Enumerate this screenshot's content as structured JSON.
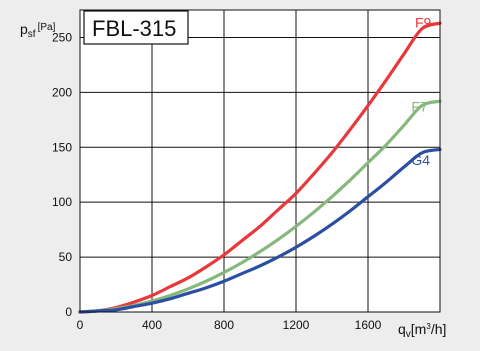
{
  "chart_data": {
    "type": "line",
    "title": "FBL-315",
    "ylabel": {
      "symbol": "p",
      "subscript": "sf",
      "unit": "[Pa]"
    },
    "xlabel": {
      "symbol": "q",
      "subscript": "v",
      "unit_prefix": "[m",
      "unit_sup": "3",
      "unit_suffix": "/h]"
    },
    "xlim": [
      0,
      2000
    ],
    "ylim": [
      0,
      275
    ],
    "xticks": [
      0,
      400,
      800,
      1200,
      1600
    ],
    "yticks": [
      0,
      50,
      100,
      150,
      200,
      250
    ],
    "grid": true,
    "series": [
      {
        "name": "F9",
        "color": "#e8383d",
        "points": [
          [
            0,
            0
          ],
          [
            100,
            1
          ],
          [
            200,
            4
          ],
          [
            300,
            9
          ],
          [
            400,
            15
          ],
          [
            500,
            23
          ],
          [
            600,
            31
          ],
          [
            700,
            41
          ],
          [
            800,
            52
          ],
          [
            900,
            65
          ],
          [
            1000,
            78
          ],
          [
            1100,
            93
          ],
          [
            1200,
            108
          ],
          [
            1300,
            126
          ],
          [
            1400,
            145
          ],
          [
            1500,
            166
          ],
          [
            1600,
            188
          ],
          [
            1700,
            211
          ],
          [
            1800,
            235
          ],
          [
            1900,
            258
          ],
          [
            2000,
            263
          ]
        ]
      },
      {
        "name": "F7",
        "color": "#86b87c",
        "points": [
          [
            0,
            0
          ],
          [
            100,
            1
          ],
          [
            200,
            3
          ],
          [
            300,
            6
          ],
          [
            400,
            10
          ],
          [
            500,
            15
          ],
          [
            600,
            21
          ],
          [
            700,
            28
          ],
          [
            800,
            36
          ],
          [
            900,
            45
          ],
          [
            1000,
            55
          ],
          [
            1100,
            66
          ],
          [
            1200,
            78
          ],
          [
            1300,
            91
          ],
          [
            1400,
            105
          ],
          [
            1500,
            120
          ],
          [
            1600,
            136
          ],
          [
            1700,
            152
          ],
          [
            1800,
            170
          ],
          [
            1900,
            188
          ],
          [
            2000,
            192
          ]
        ]
      },
      {
        "name": "G4",
        "color": "#2c4fa3",
        "points": [
          [
            0,
            0
          ],
          [
            100,
            1
          ],
          [
            200,
            2
          ],
          [
            300,
            5
          ],
          [
            400,
            8
          ],
          [
            500,
            12
          ],
          [
            600,
            17
          ],
          [
            700,
            22
          ],
          [
            800,
            28
          ],
          [
            900,
            35
          ],
          [
            1000,
            42
          ],
          [
            1100,
            50
          ],
          [
            1200,
            59
          ],
          [
            1300,
            69
          ],
          [
            1400,
            80
          ],
          [
            1500,
            92
          ],
          [
            1600,
            105
          ],
          [
            1700,
            118
          ],
          [
            1800,
            132
          ],
          [
            1900,
            145
          ],
          [
            2000,
            148
          ]
        ]
      }
    ]
  }
}
